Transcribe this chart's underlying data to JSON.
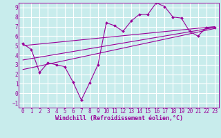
{
  "xlabel": "Windchill (Refroidissement éolien,°C)",
  "bg_color": "#c8ecec",
  "grid_color": "#aadddd",
  "line_color": "#990099",
  "xlim": [
    -0.5,
    23.5
  ],
  "ylim": [
    -1.5,
    9.5
  ],
  "xticks": [
    0,
    1,
    2,
    3,
    4,
    5,
    6,
    7,
    8,
    9,
    10,
    11,
    12,
    13,
    14,
    15,
    16,
    17,
    18,
    19,
    20,
    21,
    22,
    23
  ],
  "yticks": [
    -1,
    0,
    1,
    2,
    3,
    4,
    5,
    6,
    7,
    8,
    9
  ],
  "data_x": [
    0,
    1,
    2,
    3,
    4,
    5,
    6,
    7,
    8,
    9,
    10,
    11,
    12,
    13,
    14,
    15,
    16,
    17,
    18,
    19,
    20,
    21,
    22,
    23
  ],
  "data_y": [
    5.2,
    4.6,
    2.2,
    3.2,
    3.0,
    2.8,
    1.2,
    -0.7,
    1.1,
    3.0,
    7.4,
    7.1,
    6.5,
    7.6,
    8.3,
    8.3,
    9.5,
    9.1,
    8.0,
    7.9,
    6.5,
    6.0,
    6.9,
    6.9
  ],
  "line1_x": [
    0,
    23
  ],
  "line1_y": [
    5.0,
    7.0
  ],
  "line2_x": [
    0,
    23
  ],
  "line2_y": [
    3.5,
    6.9
  ],
  "line3_x": [
    0,
    23
  ],
  "line3_y": [
    2.5,
    6.8
  ],
  "tick_fontsize": 5.5,
  "label_fontsize": 6.0
}
